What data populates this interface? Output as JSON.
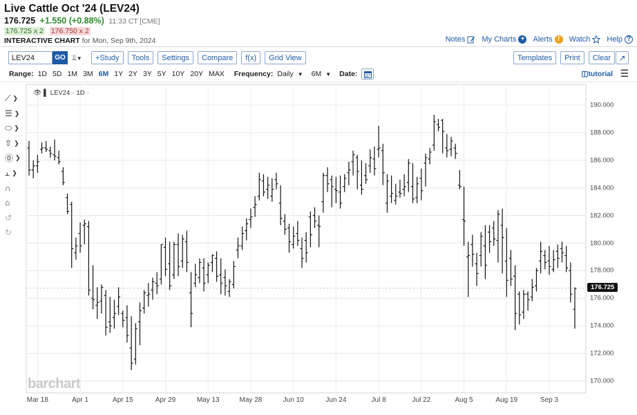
{
  "header": {
    "title": "Live Cattle Oct '24 (LEV24)",
    "last": "176.725",
    "change": "+1.550 (+0.88%)",
    "time": "11:33 CT [CME]",
    "bid": "176.725 x 2",
    "ask": "176.750 x 2",
    "chart_label": "INTERACTIVE CHART",
    "chart_date": "for Mon, Sep 9th, 2024"
  },
  "toplinks": {
    "notes": "Notes",
    "mycharts": "My Charts",
    "alerts": "Alerts",
    "watch": "Watch",
    "help": "Help"
  },
  "toolbar": {
    "symbol": "LEV24",
    "go": "GO",
    "study": "+Study",
    "tools": "Tools",
    "settings": "Settings",
    "compare": "Compare",
    "fx": "f(x)",
    "gridview": "Grid View",
    "templates": "Templates",
    "print": "Print",
    "clear": "Clear"
  },
  "range": {
    "label": "Range:",
    "items": [
      "1D",
      "5D",
      "1M",
      "3M",
      "6M",
      "1Y",
      "2Y",
      "3Y",
      "5Y",
      "10Y",
      "20Y",
      "MAX"
    ],
    "active": "6M",
    "frequency_label": "Frequency:",
    "frequency": "Daily",
    "period": "6M",
    "date_label": "Date:",
    "tutorial": "tutorial"
  },
  "legend": {
    "symbol": "LEV24",
    "interval": "1D"
  },
  "watermark": "barchart",
  "icons": {
    "notes": "pencil-icon",
    "mycharts": "plus-circle-icon",
    "alerts": "exclamation-circle-icon",
    "watch": "star-icon",
    "help": "question-circle-icon",
    "expand": "expand-arrow-icon",
    "calendar": "calendar-icon",
    "menu": "hamburger-icon"
  },
  "colors": {
    "accent": "#1f5aa6",
    "up": "#2e8b2e",
    "down": "#a23232",
    "bars": "#111111"
  },
  "chart_data": {
    "type": "ohlc",
    "title": "",
    "ylim": [
      169.5,
      191.0
    ],
    "y_ticks": [
      "190.000",
      "188.000",
      "186.000",
      "184.000",
      "182.000",
      "180.000",
      "178.000",
      "176.000",
      "174.000",
      "172.000",
      "170.000"
    ],
    "x_ticks": [
      "Mar 18",
      "Apr 1",
      "Apr 15",
      "Apr 29",
      "May 13",
      "May 28",
      "Jun 10",
      "Jun 24",
      "Jul 8",
      "Jul 22",
      "Aug 5",
      "Aug 19",
      "Sep 3"
    ],
    "last_price": "176.725",
    "ohlc": [
      [
        186.9,
        187.4,
        184.9,
        185.3
      ],
      [
        185.3,
        186.0,
        184.7,
        185.6
      ],
      [
        185.6,
        186.4,
        185.1,
        185.9
      ],
      [
        186.8,
        187.3,
        186.5,
        186.9
      ],
      [
        186.9,
        187.4,
        186.6,
        186.8
      ],
      [
        186.7,
        187.0,
        186.2,
        186.5
      ],
      [
        186.4,
        187.5,
        186.0,
        186.3
      ],
      [
        186.2,
        186.7,
        185.7,
        185.9
      ],
      [
        185.2,
        185.5,
        184.2,
        184.4
      ],
      [
        183.3,
        183.6,
        182.1,
        182.3
      ],
      [
        182.8,
        183.0,
        178.2,
        179.6
      ],
      [
        179.3,
        180.4,
        178.8,
        179.8
      ],
      [
        180.7,
        181.5,
        179.3,
        179.8
      ],
      [
        181.3,
        181.7,
        179.9,
        181.4
      ],
      [
        181.2,
        181.6,
        176.2,
        176.6
      ],
      [
        176.0,
        178.4,
        175.2,
        175.9
      ],
      [
        175.5,
        176.8,
        174.5,
        175.7
      ],
      [
        175.8,
        177.0,
        174.9,
        176.8
      ],
      [
        176.2,
        176.6,
        173.3,
        173.9
      ],
      [
        174.3,
        176.1,
        173.5,
        174.0
      ],
      [
        174.6,
        175.9,
        173.8,
        174.9
      ],
      [
        175.4,
        176.8,
        174.8,
        176.1
      ],
      [
        174.9,
        175.1,
        173.9,
        174.4
      ],
      [
        174.6,
        175.5,
        172.8,
        173.3
      ],
      [
        172.4,
        174.7,
        170.8,
        171.3
      ],
      [
        171.6,
        174.2,
        171.2,
        173.8
      ],
      [
        174.3,
        175.7,
        172.6,
        175.1
      ],
      [
        175.3,
        176.6,
        174.9,
        176.4
      ],
      [
        176.2,
        177.1,
        175.4,
        176.3
      ],
      [
        176.6,
        177.5,
        175.9,
        177.2
      ],
      [
        177.1,
        177.9,
        176.3,
        176.9
      ],
      [
        177.4,
        179.9,
        177.0,
        179.9
      ],
      [
        179.7,
        180.4,
        177.6,
        178.1
      ],
      [
        178.5,
        180.1,
        176.6,
        176.9
      ],
      [
        177.7,
        180.1,
        177.4,
        179.9
      ],
      [
        179.9,
        180.7,
        177.6,
        178.3
      ],
      [
        178.7,
        180.6,
        178.2,
        180.3
      ],
      [
        180.1,
        180.9,
        177.9,
        178.6
      ],
      [
        176.4,
        177.9,
        173.9,
        174.9
      ],
      [
        177.1,
        178.5,
        176.8,
        177.7
      ],
      [
        177.5,
        178.9,
        177.1,
        178.6
      ],
      [
        178.2,
        178.9,
        176.5,
        177.1
      ],
      [
        177.7,
        178.6,
        177.1,
        178.4
      ],
      [
        178.6,
        179.2,
        177.9,
        179.1
      ],
      [
        178.9,
        179.4,
        177.2,
        177.6
      ],
      [
        177.7,
        178.9,
        176.3,
        177.1
      ],
      [
        177.5,
        178.1,
        176.2,
        176.9
      ],
      [
        176.5,
        177.4,
        176.1,
        177.2
      ],
      [
        177.0,
        178.7,
        176.7,
        178.3
      ],
      [
        179.5,
        180.4,
        178.9,
        179.8
      ],
      [
        179.8,
        181.2,
        179.5,
        180.7
      ],
      [
        180.9,
        181.8,
        180.2,
        181.4
      ],
      [
        181.7,
        182.5,
        181.1,
        181.9
      ],
      [
        182.6,
        183.4,
        181.9,
        182.8
      ],
      [
        183.4,
        185.1,
        183.1,
        184.6
      ],
      [
        184.5,
        185.0,
        183.4,
        183.7
      ],
      [
        183.9,
        184.8,
        183.2,
        184.2
      ],
      [
        183.4,
        184.7,
        183.0,
        183.9
      ],
      [
        184.6,
        185.1,
        183.9,
        184.3
      ],
      [
        182.9,
        184.2,
        181.3,
        181.8
      ],
      [
        181.6,
        182.1,
        180.6,
        181.0
      ],
      [
        181.1,
        181.4,
        179.3,
        180.1
      ],
      [
        179.9,
        181.2,
        179.6,
        180.5
      ],
      [
        180.7,
        181.6,
        179.8,
        180.2
      ],
      [
        179.6,
        180.4,
        178.2,
        178.9
      ],
      [
        180.2,
        180.8,
        178.6,
        179.3
      ],
      [
        181.9,
        182.3,
        179.7,
        180.6
      ],
      [
        182.0,
        182.6,
        181.1,
        181.6
      ],
      [
        181.3,
        182.0,
        179.7,
        181.2
      ],
      [
        183.0,
        185.1,
        182.2,
        184.9
      ],
      [
        184.9,
        185.5,
        183.7,
        184.3
      ],
      [
        184.6,
        184.9,
        182.6,
        184.1
      ],
      [
        183.9,
        184.8,
        182.9,
        183.8
      ],
      [
        183.7,
        184.9,
        182.5,
        182.9
      ],
      [
        184.1,
        185.0,
        183.7,
        184.7
      ],
      [
        185.1,
        185.9,
        184.2,
        185.3
      ],
      [
        185.9,
        186.7,
        184.9,
        186.4
      ],
      [
        186.2,
        186.4,
        183.9,
        185.2
      ],
      [
        184.2,
        186.0,
        183.5,
        183.9
      ],
      [
        184.9,
        185.8,
        184.3,
        184.6
      ],
      [
        185.6,
        186.8,
        185.1,
        186.2
      ],
      [
        186.1,
        187.0,
        184.9,
        185.4
      ],
      [
        186.8,
        188.5,
        186.2,
        186.9
      ],
      [
        186.7,
        187.2,
        184.2,
        185.1
      ],
      [
        182.9,
        185.0,
        182.2,
        184.5
      ],
      [
        183.4,
        184.9,
        182.9,
        183.6
      ],
      [
        183.1,
        184.3,
        182.8,
        183.4
      ],
      [
        183.7,
        184.6,
        183.3,
        183.6
      ],
      [
        183.9,
        185.0,
        183.4,
        184.1
      ],
      [
        184.4,
        186.1,
        183.7,
        185.8
      ],
      [
        184.1,
        185.8,
        182.9,
        183.2
      ],
      [
        183.3,
        184.8,
        182.9,
        184.3
      ],
      [
        184.7,
        185.4,
        183.1,
        183.8
      ],
      [
        185.8,
        186.5,
        184.1,
        186.2
      ],
      [
        186.1,
        186.9,
        185.7,
        186.6
      ],
      [
        187.1,
        189.3,
        186.7,
        188.8
      ],
      [
        188.6,
        189.0,
        188.1,
        188.4
      ],
      [
        188.9,
        189.0,
        186.5,
        188.1
      ],
      [
        186.9,
        187.9,
        186.2,
        186.7
      ],
      [
        186.8,
        187.7,
        186.3,
        187.4
      ],
      [
        186.9,
        187.2,
        186.1,
        186.5
      ],
      [
        184.2,
        185.3,
        183.9,
        184.1
      ],
      [
        181.7,
        184.1,
        179.8,
        181.6
      ],
      [
        179.0,
        180.1,
        176.1,
        179.1
      ],
      [
        179.9,
        180.6,
        178.3,
        179.2
      ],
      [
        178.5,
        179.3,
        176.9,
        177.8
      ],
      [
        179.1,
        180.8,
        178.3,
        180.5
      ],
      [
        179.8,
        181.3,
        177.4,
        178.4
      ],
      [
        180.8,
        181.3,
        179.3,
        180.1
      ],
      [
        181.1,
        181.6,
        179.8,
        180.3
      ],
      [
        180.2,
        182.4,
        178.6,
        182.1
      ],
      [
        181.3,
        182.5,
        177.8,
        180.4
      ],
      [
        178.7,
        181.1,
        176.1,
        177.3
      ],
      [
        178.9,
        179.5,
        176.9,
        177.4
      ],
      [
        177.6,
        178.4,
        173.7,
        174.9
      ],
      [
        176.3,
        176.5,
        174.1,
        174.8
      ],
      [
        175.0,
        176.6,
        174.5,
        176.3
      ],
      [
        176.3,
        176.5,
        175.1,
        175.9
      ],
      [
        176.1,
        177.4,
        175.8,
        176.8
      ],
      [
        176.9,
        178.2,
        176.5,
        178.0
      ],
      [
        178.7,
        180.1,
        177.8,
        179.4
      ],
      [
        179.1,
        179.5,
        178.1,
        178.6
      ],
      [
        178.7,
        179.8,
        177.7,
        178.3
      ],
      [
        178.1,
        179.5,
        177.9,
        178.8
      ],
      [
        179.4,
        179.9,
        178.2,
        178.9
      ],
      [
        179.6,
        180.1,
        178.6,
        179.3
      ],
      [
        179.1,
        179.8,
        177.9,
        178.2
      ],
      [
        178.0,
        178.6,
        175.7,
        176.3
      ],
      [
        175.2,
        176.8,
        173.8,
        176.7
      ]
    ]
  }
}
